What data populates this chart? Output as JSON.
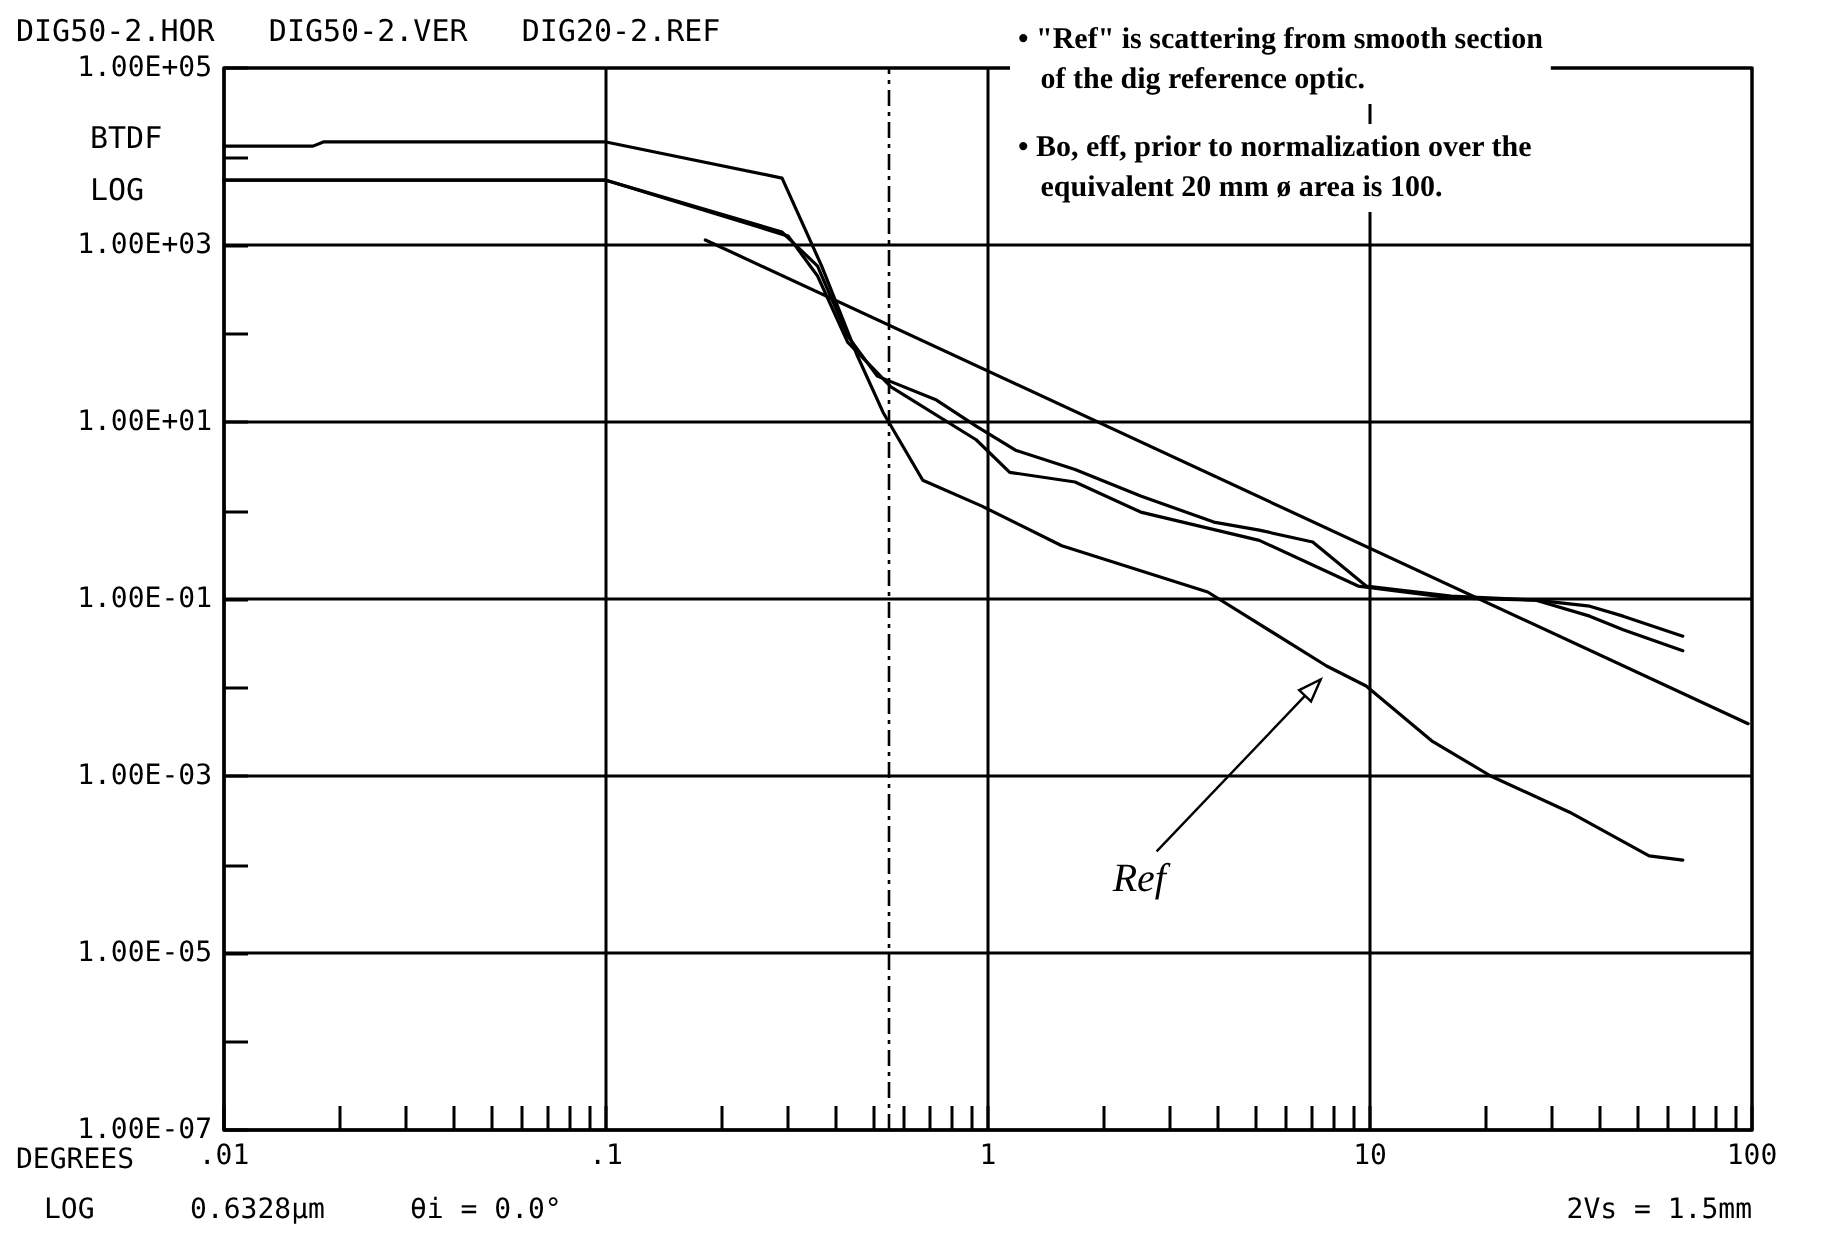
{
  "chart_data": {
    "type": "line",
    "title": "DIG50-2.HOR   DIG50-2.VER   DIG20-2.REF",
    "xlabel": "DEGREES",
    "ylabel": "BTDF\nLOG",
    "log": "xy",
    "xlim": [
      0.01,
      100
    ],
    "ylim": [
      1e-07,
      100000.0
    ],
    "xticks": [
      {
        "value": 0.01,
        "label": ".01"
      },
      {
        "value": 0.02,
        "label": null
      },
      {
        "value": 0.03,
        "label": null
      },
      {
        "value": 0.04,
        "label": null
      },
      {
        "value": 0.05,
        "label": null
      },
      {
        "value": 0.06,
        "label": null
      },
      {
        "value": 0.07,
        "label": null
      },
      {
        "value": 0.08,
        "label": null
      },
      {
        "value": 0.09,
        "label": null
      },
      {
        "value": 0.1,
        "label": ".1"
      },
      {
        "value": 0.2,
        "label": null
      },
      {
        "value": 0.3,
        "label": null
      },
      {
        "value": 0.4,
        "label": null
      },
      {
        "value": 0.5,
        "label": null
      },
      {
        "value": 0.6,
        "label": null
      },
      {
        "value": 0.7,
        "label": null
      },
      {
        "value": 0.8,
        "label": null
      },
      {
        "value": 0.9,
        "label": null
      },
      1,
      {
        "value": 2,
        "label": null
      },
      {
        "value": 3,
        "label": null
      },
      {
        "value": 4,
        "label": null
      },
      {
        "value": 5,
        "label": null
      },
      {
        "value": 6,
        "label": null
      },
      {
        "value": 7,
        "label": null
      },
      {
        "value": 8,
        "label": null
      },
      {
        "value": 9,
        "label": null
      },
      10,
      {
        "value": 20,
        "label": null
      },
      {
        "value": 30,
        "label": null
      },
      {
        "value": 40,
        "label": null
      },
      {
        "value": 50,
        "label": null
      },
      {
        "value": 60,
        "label": null
      },
      {
        "value": 70,
        "label": null
      },
      {
        "value": 80,
        "label": null
      },
      {
        "value": 90,
        "label": null
      },
      100
    ],
    "yticks": [
      {
        "value": 1e-07,
        "label": "1.00E-07"
      },
      {
        "value": 1e-06,
        "label": null
      },
      {
        "value": 1e-05,
        "label": "1.00E-05"
      },
      {
        "value": 0.0001,
        "label": null
      },
      {
        "value": 0.001,
        "label": "1.00E-03"
      },
      {
        "value": 0.01,
        "label": null
      },
      {
        "value": 0.1,
        "label": "1.00E-01"
      },
      {
        "value": 1,
        "label": null
      },
      {
        "value": 10,
        "label": "1.00E+01"
      },
      {
        "value": 100,
        "label": null
      },
      {
        "value": 1000,
        "label": "1.00E+03"
      },
      {
        "value": 10000,
        "label": null
      },
      {
        "value": 100000,
        "label": "1.00E+05"
      }
    ],
    "grid": true,
    "marker": "none",
    "line_style": "solid",
    "series": [
      {
        "color": "#000000",
        "x": [
          0.01,
          0.1,
          0.289,
          0.358,
          0.429,
          0.513,
          0.733,
          0.931,
          1.18,
          1.69,
          2.51,
          3.9,
          5.13,
          7.08,
          9.77,
          16.3,
          27.2,
          37.6,
          46.0,
          65.9
        ],
        "values": [
          5400,
          5400,
          1400,
          578,
          94,
          33,
          17.7,
          9.0,
          4.8,
          2.9,
          1.46,
          0.74,
          0.6,
          0.44,
          0.14,
          0.108,
          0.097,
          0.083,
          0.064,
          0.038
        ]
      },
      {
        "color": "#000000",
        "x": [
          0.01,
          0.1,
          0.3,
          0.358,
          0.429,
          0.557,
          0.931,
          1.14,
          1.69,
          2.51,
          5.13,
          9.31,
          16.3,
          27.2,
          37.6,
          46.0,
          65.9
        ],
        "values": [
          5400,
          5400,
          1260,
          446,
          80,
          25,
          6.3,
          2.7,
          2.1,
          0.96,
          0.46,
          0.14,
          0.103,
          0.097,
          0.064,
          0.045,
          0.026
        ]
      },
      {
        "color": "#000000",
        "x": [
          0.01,
          0.0171,
          0.0182,
          0.1,
          0.289,
          0.367,
          0.455,
          0.531,
          0.675,
          0.964,
          1.56,
          3.76,
          7.7,
          9.77,
          14.5,
          20.7,
          33.3,
          53.8,
          65.9
        ],
        "values": [
          13100,
          13100,
          14600,
          14600,
          5700,
          578,
          56,
          12.9,
          2.2,
          1.12,
          0.4,
          0.12,
          0.0175,
          0.0104,
          0.0025,
          0.001,
          0.00039,
          0.000125,
          0.000112
        ]
      },
      {
        "color": "#000000",
        "x": [
          0.182,
          97.7
        ],
        "values": [
          1140,
          0.0039
        ]
      }
    ],
    "ref_lines": [
      {
        "axis": "x",
        "value": 0.55,
        "label": null,
        "color": "#000000",
        "line_style": "dashed"
      }
    ],
    "annotations": [
      "• \"Ref\" is scattering from smooth section\n   of the dig reference optic.",
      "• Bo, eff, prior to normalization over the\n   equivalent 20 mm ø area is 100.",
      "LOG",
      "0.6328µm",
      "θi = 0.0°",
      "2Vs = 1.5mm",
      {
        "text": "Ref",
        "x": 7.7,
        "y": 0.016
      }
    ]
  }
}
